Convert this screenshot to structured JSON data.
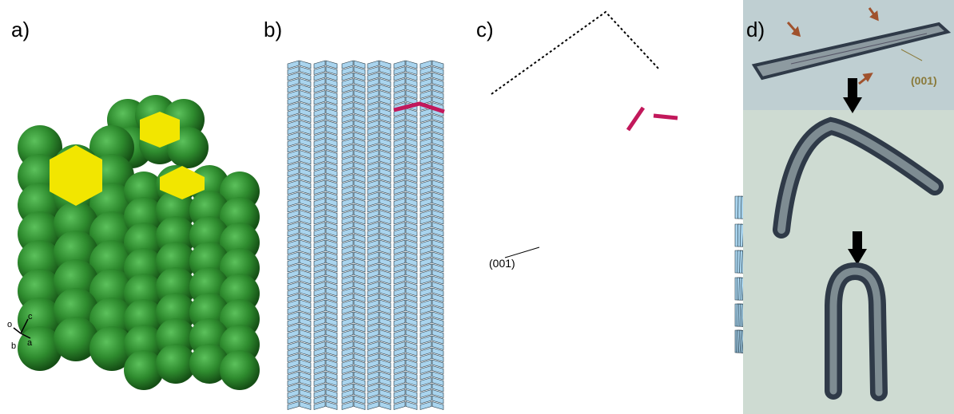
{
  "panels": {
    "a": {
      "label": "a)",
      "axis": {
        "o": "o",
        "c": "c",
        "b": "b",
        "a": "a"
      }
    },
    "b": {
      "label": "b)"
    },
    "c": {
      "label": "c)",
      "plane_label": "(001)"
    },
    "d": {
      "label": "d)",
      "plane_label": "(001)"
    }
  },
  "colors": {
    "sphere_green": "#2e8b2e",
    "sphere_dark": "#175717",
    "core_yellow": "#f2e600",
    "layer_blue": "#a9d4ee",
    "highlight_red": "#c2185b",
    "arrow_brown": "#a0522d",
    "arrow_black": "#000000",
    "photo_bg": "#c9d7cf",
    "crystal_dark": "#2f3a48"
  }
}
